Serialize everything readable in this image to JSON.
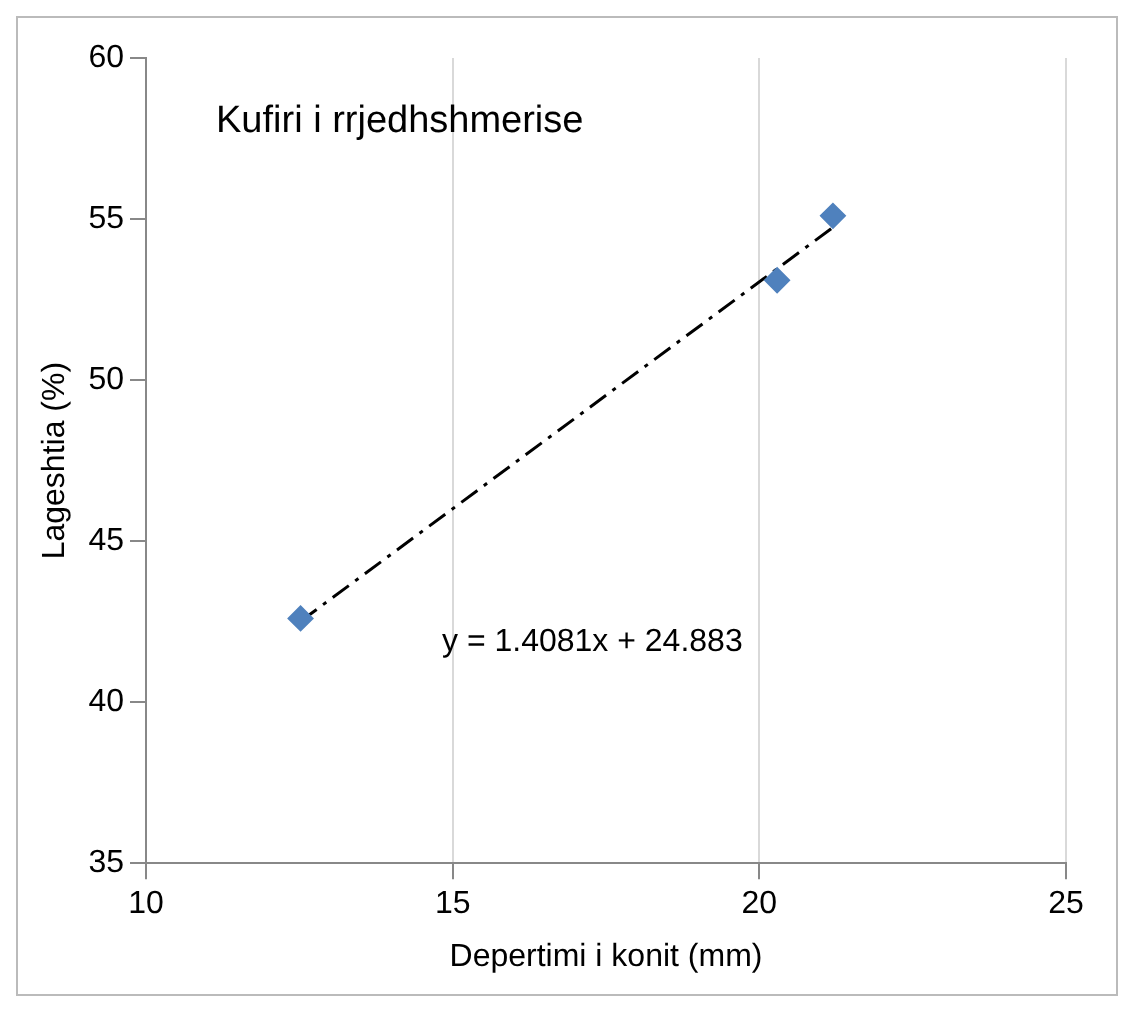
{
  "chart_data": {
    "type": "scatter",
    "xlabel": "Depertimi i konit (mm)",
    "ylabel": "Lageshtia (%)",
    "xlim": [
      10,
      25
    ],
    "xticks": [
      10,
      15,
      20,
      25
    ],
    "ylim": [
      35,
      60
    ],
    "yticks": [
      35,
      40,
      45,
      50,
      55,
      60
    ],
    "grid": "x",
    "legend": false,
    "marker": "diamond",
    "annotations": [
      "Kufiri i rrjedhshmerise",
      "y = 1.4081x + 24.883"
    ],
    "series": [
      {
        "type": "scatter",
        "color": "#4f81bd",
        "x": [
          12.52,
          20.29,
          21.2
        ],
        "values": [
          42.6,
          53.1,
          55.1
        ]
      },
      {
        "type": "line",
        "color": "#000000",
        "line_style": "dashed",
        "marker": "none",
        "x": [
          12.52,
          21.2
        ],
        "values": [
          42.51,
          54.74
        ]
      }
    ]
  }
}
